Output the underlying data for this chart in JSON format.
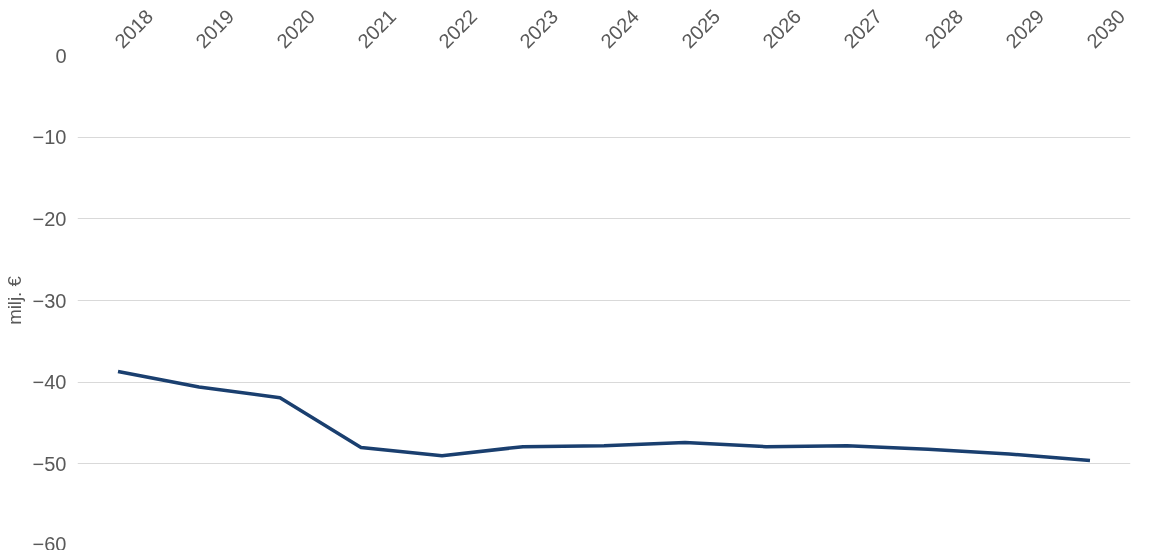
{
  "chart_data": {
    "type": "line",
    "ylabel": "milj. €",
    "categories": [
      "2018",
      "2019",
      "2020",
      "2021",
      "2022",
      "2023",
      "2024",
      "2025",
      "2026",
      "2027",
      "2028",
      "2029",
      "2030"
    ],
    "series": [
      {
        "color": "#1a3f6f",
        "values": [
          -38.7,
          -40.6,
          -41.9,
          -48.0,
          -49.0,
          -47.9,
          -47.8,
          -47.4,
          -47.9,
          -47.8,
          -48.2,
          -48.8,
          -49.6
        ]
      }
    ],
    "ylim": [
      -60,
      0
    ],
    "yticks": [
      -60,
      -50,
      -40,
      -30,
      -20,
      -10,
      0
    ],
    "grid": "y",
    "marker": "none",
    "line_style": "solid"
  }
}
